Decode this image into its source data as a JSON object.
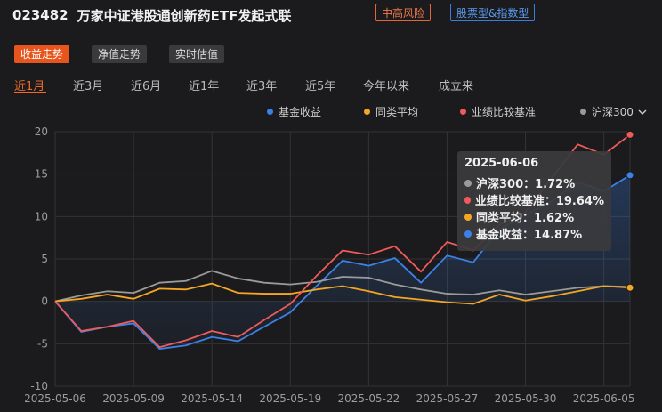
{
  "header": {
    "fund_code": "023482",
    "fund_name": "万家中证港股通创新药ETF发起式联",
    "risk_tag": "中高风险",
    "type_tag": "股票型&指数型"
  },
  "view_tabs": [
    {
      "label": "收益走势",
      "active": true
    },
    {
      "label": "净值走势",
      "active": false
    },
    {
      "label": "实时估值",
      "active": false
    }
  ],
  "periods": [
    {
      "label": "近1月",
      "active": true
    },
    {
      "label": "近3月",
      "active": false
    },
    {
      "label": "近6月",
      "active": false
    },
    {
      "label": "近1年",
      "active": false
    },
    {
      "label": "近3年",
      "active": false
    },
    {
      "label": "近5年",
      "active": false
    },
    {
      "label": "今年以来",
      "active": false
    },
    {
      "label": "成立来",
      "active": false
    }
  ],
  "legend": {
    "dropdown_icon": "chevron-down-icon"
  },
  "tooltip": {
    "date": "2025-06-06",
    "rows": [
      {
        "label": "沪深300：1.72%",
        "color": "#9a9a9a"
      },
      {
        "label": "业绩比较基准：19.64%",
        "color": "#f05a5a"
      },
      {
        "label": "同类平均：1.62%",
        "color": "#f5a623"
      },
      {
        "label": "基金收益：14.87%",
        "color": "#3b82e8"
      }
    ]
  },
  "chart_data": {
    "type": "line",
    "x": [
      "2025-05-06",
      "2025-05-07",
      "2025-05-08",
      "2025-05-09",
      "2025-05-12",
      "2025-05-13",
      "2025-05-14",
      "2025-05-15",
      "2025-05-16",
      "2025-05-19",
      "2025-05-20",
      "2025-05-21",
      "2025-05-22",
      "2025-05-23",
      "2025-05-26",
      "2025-05-27",
      "2025-05-28",
      "2025-05-29",
      "2025-05-30",
      "2025-06-03",
      "2025-06-04",
      "2025-06-05",
      "2025-06-06"
    ],
    "x_tick_labels": [
      "2025-05-06",
      "2025-05-09",
      "2025-05-14",
      "2025-05-19",
      "2025-05-22",
      "2025-05-27",
      "2025-05-30",
      "2025-06-05"
    ],
    "y_ticks": [
      20,
      15,
      10,
      5,
      0,
      -5,
      -10
    ],
    "ylim": [
      -10,
      20
    ],
    "grid": true,
    "legend_position": "top-right",
    "series": [
      {
        "name": "基金收益",
        "color": "#3b82e8",
        "area": true,
        "values": [
          0,
          -3.6,
          -3.0,
          -2.6,
          -5.6,
          -5.2,
          -4.2,
          -4.7,
          -3.0,
          -1.3,
          1.8,
          4.8,
          4.2,
          5.1,
          2.2,
          5.4,
          4.6,
          8.5,
          10.2,
          11.8,
          14.1,
          13.0,
          14.87
        ]
      },
      {
        "name": "同类平均",
        "color": "#f5a623",
        "area": false,
        "values": [
          0,
          0.3,
          0.8,
          0.3,
          1.5,
          1.4,
          2.1,
          1.0,
          0.9,
          0.9,
          1.4,
          1.8,
          1.2,
          0.5,
          0.2,
          -0.1,
          -0.3,
          0.8,
          0.1,
          0.6,
          1.2,
          1.8,
          1.62
        ]
      },
      {
        "name": "业绩比较基准",
        "color": "#f05a5a",
        "area": false,
        "values": [
          0,
          -3.5,
          -3.0,
          -2.3,
          -5.4,
          -4.6,
          -3.5,
          -4.2,
          -2.2,
          -0.3,
          3.0,
          6.0,
          5.5,
          6.5,
          3.5,
          7.0,
          6.0,
          9.0,
          10.5,
          14.5,
          18.5,
          17.3,
          19.64
        ]
      },
      {
        "name": "沪深300",
        "color": "#9a9a9a",
        "area": false,
        "values": [
          0,
          0.7,
          1.2,
          1.0,
          2.2,
          2.4,
          3.6,
          2.7,
          2.2,
          2.0,
          2.3,
          2.9,
          2.8,
          2.0,
          1.4,
          0.9,
          0.8,
          1.3,
          0.8,
          1.2,
          1.6,
          1.8,
          1.72
        ]
      }
    ]
  }
}
